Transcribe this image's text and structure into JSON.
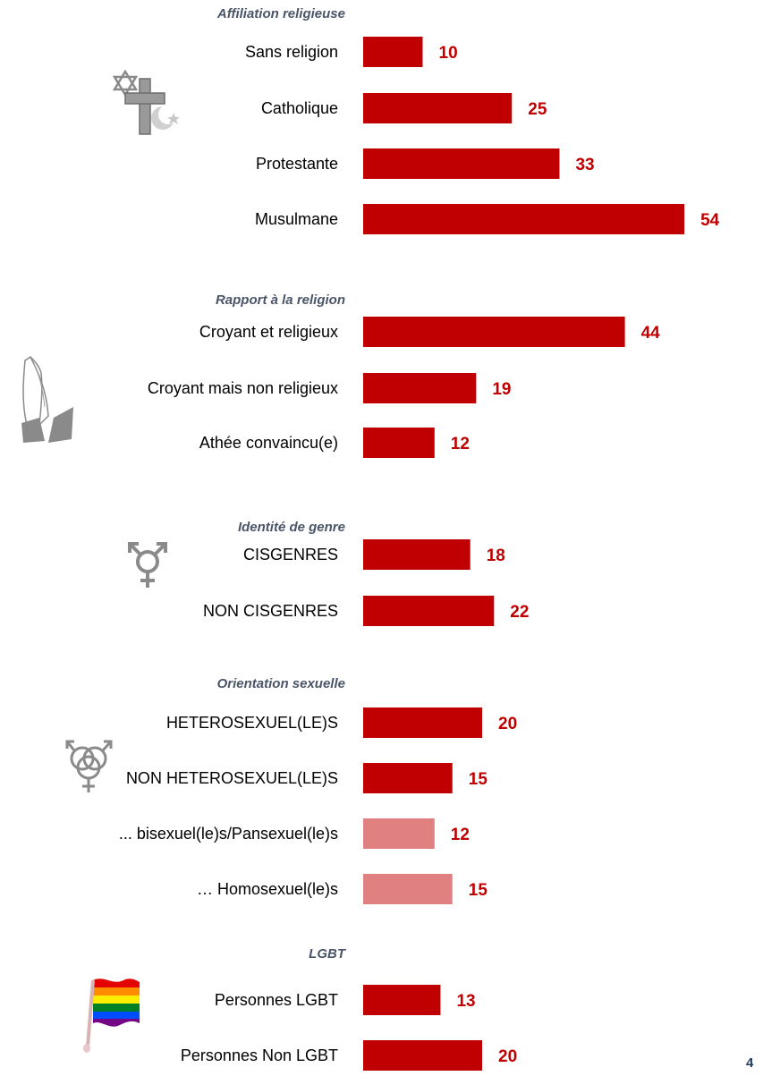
{
  "page_number": "4",
  "colors": {
    "bar_main": "#c00000",
    "bar_light": "#e08080",
    "value_text": "#c00000",
    "label_text": "#000000",
    "section_title": "#4a5568"
  },
  "chart_data": {
    "type": "bar",
    "orientation": "horizontal",
    "sections": [
      {
        "title": "Affiliation religieuse",
        "icon": "religion-symbols-icon",
        "rows": [
          {
            "label": "Sans religion",
            "value": 10,
            "style": "main"
          },
          {
            "label": "Catholique",
            "value": 25,
            "style": "main"
          },
          {
            "label": "Protestante",
            "value": 33,
            "style": "main"
          },
          {
            "label": "Musulmane",
            "value": 54,
            "style": "main"
          }
        ]
      },
      {
        "title": "Rapport à la religion",
        "icon": "praying-hands-icon",
        "rows": [
          {
            "label": "Croyant et religieux",
            "value": 44,
            "style": "main"
          },
          {
            "label": "Croyant mais non religieux",
            "value": 19,
            "style": "main"
          },
          {
            "label": "Athée convaincu(e)",
            "value": 12,
            "style": "main"
          }
        ]
      },
      {
        "title": "Identité de genre",
        "icon": "transgender-symbol-icon",
        "rows": [
          {
            "label": "CISGENRES",
            "value": 18,
            "style": "main"
          },
          {
            "label": "NON CISGENRES",
            "value": 22,
            "style": "main"
          }
        ]
      },
      {
        "title": "Orientation sexuelle",
        "icon": "gender-symbols-icon",
        "rows": [
          {
            "label": "HETEROSEXUEL(LE)S",
            "value": 20,
            "style": "main"
          },
          {
            "label": "NON HETEROSEXUEL(LE)S",
            "value": 15,
            "style": "main"
          },
          {
            "label": "... bisexuel(le)s/Pansexuel(le)s",
            "value": 12,
            "style": "light"
          },
          {
            "label": "… Homosexuel(le)s",
            "value": 15,
            "style": "light"
          }
        ]
      },
      {
        "title": "LGBT",
        "icon": "rainbow-flag-icon",
        "rows": [
          {
            "label": "Personnes LGBT",
            "value": 13,
            "style": "main"
          },
          {
            "label": "Personnes Non LGBT",
            "value": 20,
            "style": "main"
          }
        ]
      }
    ]
  }
}
